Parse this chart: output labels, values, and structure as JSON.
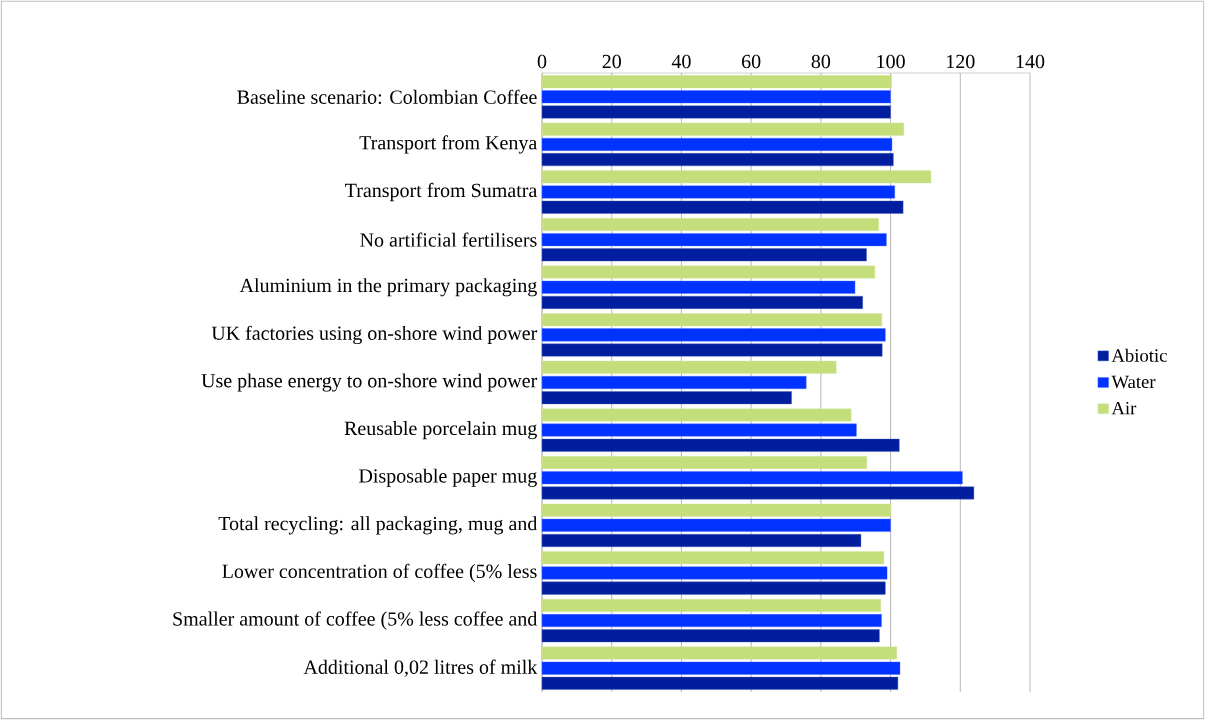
{
  "chart_data": {
    "type": "bar",
    "orientation": "horizontal",
    "categories": [
      "Baseline scenario: Colombian Coffee",
      "Transport from Kenya",
      "Transport from Sumatra",
      "No artificial fertilisers",
      "Aluminium in the primary packaging",
      "UK factories using on-shore wind power",
      "Use phase energy to on-shore wind power",
      "Reusable porcelain mug",
      "Disposable paper mug",
      "Total recycling: all packaging, mug and",
      "Lower concentration of coffee (5% less",
      "Smaller amount of coffee (5% less coffee and",
      "Additional 0,02 litres of milk"
    ],
    "series": [
      {
        "name": "Abiotic",
        "color": "#001e9e",
        "values": [
          100,
          100.8,
          103.6,
          93.1,
          92.0,
          97.6,
          71.6,
          102.5,
          123.9,
          91.5,
          98.5,
          96.8,
          102.1
        ]
      },
      {
        "name": "Water",
        "color": "#0033ff",
        "values": [
          100,
          100.4,
          101.2,
          98.8,
          89.8,
          98.5,
          75.8,
          90.2,
          120.6,
          100,
          99.0,
          97.4,
          102.7
        ]
      },
      {
        "name": "Air",
        "color": "#c4de7c",
        "values": [
          100.3,
          103.8,
          111.6,
          96.6,
          95.5,
          97.5,
          84.4,
          88.7,
          93.2,
          100.1,
          98.1,
          97.2,
          101.8
        ]
      }
    ],
    "xlim": [
      0,
      140
    ],
    "xticks": [
      0,
      20,
      40,
      60,
      80,
      100,
      120,
      140
    ],
    "grid": "x",
    "legend": "right"
  }
}
